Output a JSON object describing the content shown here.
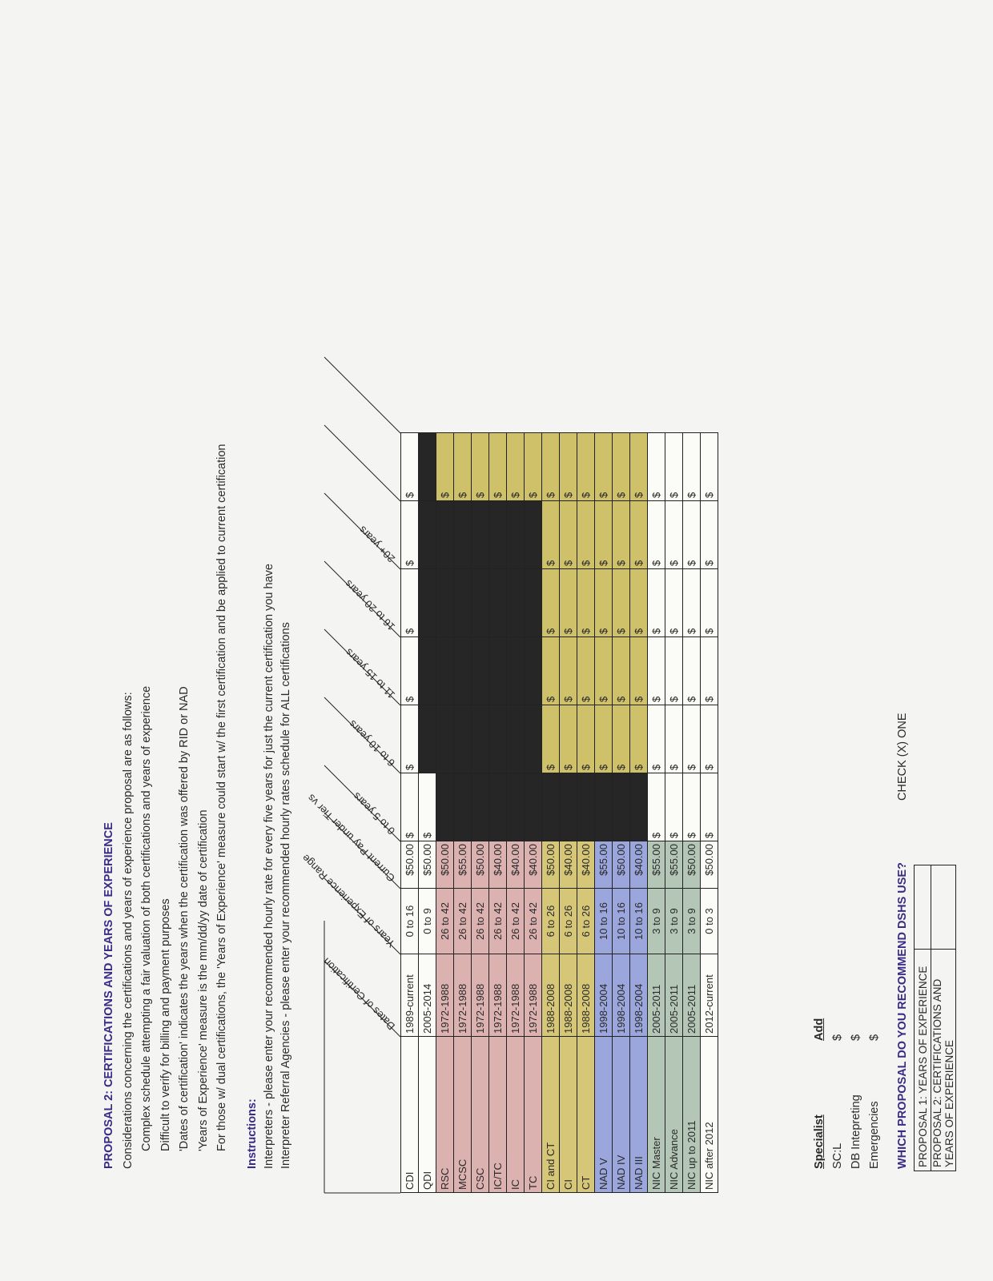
{
  "proposal": {
    "title": "PROPOSAL 2:  CERTIFICATIONS AND YEARS OF EXPERIENCE",
    "lines": [
      "Considerations concerning the certifications and years of experience proposal are as follows:",
      "Complex schedule attempting a fair valuation of both certifications and years of experience",
      "Difficult to verify for billing and payment purposes",
      "'Dates of certification' indicates the years when the certification was offered by RID or NAD",
      "'Years of Experience' measure is the mm/dd/yy date of certification",
      "For those w/ dual certifications, the 'Years of Experience' measure could start w/ the first certification and be applied to current certification"
    ]
  },
  "instructions": {
    "title": "Instructions:",
    "lines": [
      "Interpreters  - please enter your recommended hourly rate for every five years for just the current certification you have",
      "Interpreter Referral Agencies - please enter your recommended hourly rates schedule for ALL certifications"
    ]
  },
  "table": {
    "headers": [
      "Dates of Certification",
      "Years of Experience Range",
      "Current Pay under Tier vs",
      "0 to 5 years",
      "6 to 10 years",
      "11 to 15 years",
      "16 to 20 years",
      "20+ years"
    ],
    "rows": [
      {
        "cert": "CDI",
        "dates": "1989-current",
        "range": "0 to 16",
        "pay": "$50.00",
        "color": "white",
        "cells": [
          "$",
          "$",
          "$",
          "$",
          "$",
          "$"
        ]
      },
      {
        "cert": "QDI",
        "dates": "2005-2014",
        "range": "0 to 9",
        "pay": "$50.00",
        "color": "white",
        "cells": [
          "$",
          "",
          "",
          "",
          "",
          ""
        ]
      },
      {
        "cert": "RSC",
        "dates": "1972-1988",
        "range": "26 to 42",
        "pay": "$50.00",
        "color": "pink",
        "cells": [
          "",
          "",
          "",
          "",
          "",
          "$"
        ]
      },
      {
        "cert": "MCSC",
        "dates": "1972-1988",
        "range": "26 to 42",
        "pay": "$55.00",
        "color": "pink",
        "cells": [
          "",
          "",
          "",
          "",
          "",
          "$"
        ]
      },
      {
        "cert": "CSC",
        "dates": "1972-1988",
        "range": "26 to 42",
        "pay": "$50.00",
        "color": "pink",
        "cells": [
          "",
          "",
          "",
          "",
          "",
          "$"
        ]
      },
      {
        "cert": "IC/TC",
        "dates": "1972-1988",
        "range": "26 to 42",
        "pay": "$40.00",
        "color": "pink",
        "cells": [
          "",
          "",
          "",
          "",
          "",
          "$"
        ]
      },
      {
        "cert": "IC",
        "dates": "1972-1988",
        "range": "26 to 42",
        "pay": "$40.00",
        "color": "pink",
        "cells": [
          "",
          "",
          "",
          "",
          "",
          "$"
        ]
      },
      {
        "cert": "TC",
        "dates": "1972-1988",
        "range": "26 to 42",
        "pay": "$40.00",
        "color": "pink",
        "cells": [
          "",
          "",
          "",
          "",
          "",
          "$"
        ]
      },
      {
        "cert": "CI and CT",
        "dates": "1988-2008",
        "range": "6 to 26",
        "pay": "$50.00",
        "color": "yellow",
        "cells": [
          "",
          "$",
          "$",
          "$",
          "$",
          "$"
        ]
      },
      {
        "cert": "CI",
        "dates": "1988-2008",
        "range": "6 to 26",
        "pay": "$40.00",
        "color": "yellow",
        "cells": [
          "",
          "$",
          "$",
          "$",
          "$",
          "$"
        ]
      },
      {
        "cert": "CT",
        "dates": "1988-2008",
        "range": "6 to 26",
        "pay": "$40.00",
        "color": "yellow",
        "cells": [
          "",
          "$",
          "$",
          "$",
          "$",
          "$"
        ]
      },
      {
        "cert": "NAD V",
        "dates": "1998-2004",
        "range": "10 to 16",
        "pay": "$55.00",
        "color": "blue",
        "cells": [
          "",
          "$",
          "$",
          "$",
          "$",
          "$"
        ]
      },
      {
        "cert": "NAD IV",
        "dates": "1998-2004",
        "range": "10 to 16",
        "pay": "$50.00",
        "color": "blue",
        "cells": [
          "",
          "$",
          "$",
          "$",
          "$",
          "$"
        ]
      },
      {
        "cert": "NAD III",
        "dates": "1998-2004",
        "range": "10 to 16",
        "pay": "$40.00",
        "color": "blue",
        "cells": [
          "",
          "$",
          "$",
          "$",
          "$",
          "$"
        ]
      },
      {
        "cert": "NIC Master",
        "dates": "2005-2011",
        "range": "3 to 9",
        "pay": "$55.00",
        "color": "green",
        "cells": [
          "$",
          "$",
          "$",
          "$",
          "$",
          "$"
        ]
      },
      {
        "cert": "NIC Advance",
        "dates": "2005-2011",
        "range": "3 to 9",
        "pay": "$55.00",
        "color": "green",
        "cells": [
          "$",
          "$",
          "$",
          "$",
          "$",
          "$"
        ]
      },
      {
        "cert": "NIC up to 2011",
        "dates": "2005-2011",
        "range": "3 to 9",
        "pay": "$50.00",
        "color": "green",
        "cells": [
          "$",
          "$",
          "$",
          "$",
          "$",
          "$"
        ]
      },
      {
        "cert": "NIC after 2012",
        "dates": "2012-current",
        "range": "0 to 3",
        "pay": "$50.00",
        "color": "white",
        "cells": [
          "$",
          "$",
          "$",
          "$",
          "$",
          "$"
        ]
      }
    ]
  },
  "specialist": {
    "title": "Specialist",
    "add_label": "Add",
    "items": [
      {
        "label": "SC:L",
        "value": "$"
      },
      {
        "label": "DB Intepreting",
        "value": "$"
      },
      {
        "label": "Emergencies",
        "value": "$"
      }
    ]
  },
  "which": {
    "title": "WHICH PROPOSAL DO YOU RECOMMEND DSHS USE?",
    "check_label": "CHECK (X) ONE",
    "options": [
      "PROPOSAL 1:  YEARS OF EXPERIENCE",
      "PROPOSAL 2:  CERTIFICATIONS AND YEARS OF EXPERIENCE"
    ]
  }
}
